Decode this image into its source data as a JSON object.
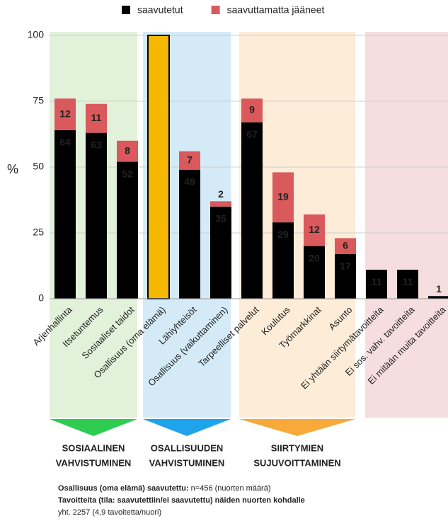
{
  "chart_data": {
    "type": "stacked_bar",
    "categories": [
      "Arjenhallinta",
      "Itsetuntemus",
      "Sosiaaliset taidot",
      "Osallisuus (oma elämä)",
      "Lähiyhteisöt",
      "Osallisuus (vaikuttaminen)",
      "Tarpeelliset palvelut",
      "Koulutus",
      "Työmarkkinat",
      "Asunto",
      "Ei yhtään siirtymätavoitteita",
      "Ei sos. vahv. tavoitteita",
      "Ei mitään muita tavoitteita"
    ],
    "series": [
      {
        "name": "saavutetut",
        "color": "#000000",
        "values": [
          64,
          63,
          52,
          100,
          49,
          35,
          67,
          29,
          20,
          17,
          11,
          11,
          1
        ]
      },
      {
        "name": "saavuttamatta jääneet",
        "color": "#d9595c",
        "values": [
          12,
          11,
          8,
          null,
          7,
          2,
          9,
          19,
          12,
          6,
          null,
          null,
          null
        ]
      }
    ],
    "highlight": {
      "index": 3,
      "color": "#f5b800"
    },
    "y_label": "%",
    "ylim": [
      0,
      100
    ],
    "yticks": [
      0,
      25,
      50,
      75,
      100
    ],
    "grid": true,
    "groups": [
      {
        "start": 0,
        "end": 3,
        "color": "#e2f2da",
        "arrow": "#2ecc50",
        "lines": [
          "SOSIAALINEN",
          "VAHVISTUMINEN"
        ]
      },
      {
        "start": 3,
        "end": 6,
        "color": "#d4ebf7",
        "arrow": "#1ea4ea",
        "lines": [
          "OSALLISUUDEN",
          "VAHVISTUMINEN"
        ]
      },
      {
        "start": 6,
        "end": 10,
        "color": "#fdecd7",
        "arrow": "#f7aa3a",
        "lines": [
          "SIIRTYMIEN",
          "SUJUVOITTAMINEN"
        ]
      },
      {
        "start": 10,
        "end": 13,
        "color": "#f6dde0",
        "arrow": null,
        "lines": []
      }
    ],
    "footnote": [
      [
        {
          "text": "Osallisuus (oma elämä) saavutettu:",
          "bold": true
        },
        {
          "text": " n=456 (nuorten määrä)",
          "bold": false
        }
      ],
      [
        {
          "text": "Tavoitteita (tila: saavutettiin/ei saavutettu) näiden nuorten kohdalle",
          "bold": true
        }
      ],
      [
        {
          "text": "yht. 2257 (4,9 tavoitetta/nuori)",
          "bold": false
        }
      ]
    ]
  }
}
